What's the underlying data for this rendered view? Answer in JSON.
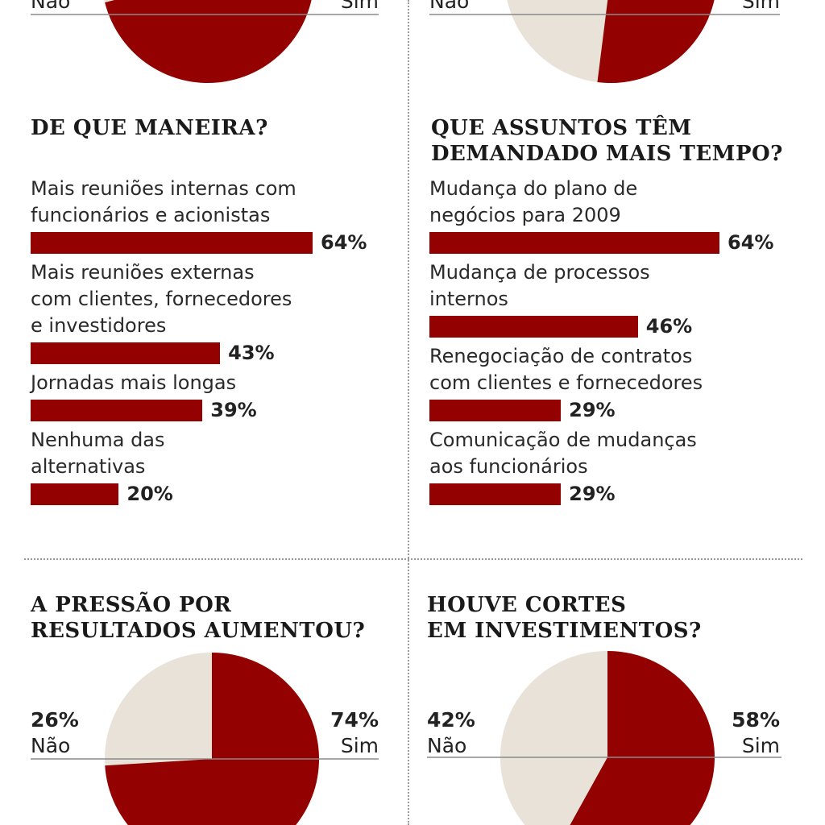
{
  "colors": {
    "accent": "#940101",
    "beige": "#e8e2d8",
    "baseline": "#8a8a8a"
  },
  "chart_data": [
    {
      "type": "pie",
      "title": "",
      "slices": [
        {
          "label": "Não",
          "value": 29,
          "display": ""
        },
        {
          "label": "Sim",
          "value": 71,
          "display": ""
        }
      ]
    },
    {
      "type": "pie",
      "title": "",
      "slices": [
        {
          "label": "Não",
          "value": 48,
          "display": ""
        },
        {
          "label": "Sim",
          "value": 52,
          "display": ""
        }
      ]
    },
    {
      "type": "bar",
      "title": "DE QUE MANEIRA?",
      "categories": [
        "Mais reuniões internas com\nfuncionários e acionistas",
        "Mais reuniões externas\ncom clientes, fornecedores\ne investidores",
        "Jornadas mais longas",
        "Nenhuma das\nalternativas"
      ],
      "values": [
        64,
        43,
        39,
        20
      ],
      "value_labels": [
        "64%",
        "43%",
        "39%",
        "20%"
      ],
      "unit": "%"
    },
    {
      "type": "bar",
      "title": "QUE ASSUNTOS TÊM\nDEMANDADO MAIS TEMPO?",
      "categories": [
        "Mudança do plano de\nnegócios para 2009",
        "Mudança de processos\ninternos",
        "Renegociação de contratos\ncom clientes e fornecedores",
        "Comunicação de mudanças\naos funcionários"
      ],
      "values": [
        64,
        46,
        29,
        29
      ],
      "value_labels": [
        "64%",
        "46%",
        "29%",
        "29%"
      ],
      "unit": "%"
    },
    {
      "type": "pie",
      "title": "A PRESSÃO POR\nRESULTADOS AUMENTOU?",
      "slices": [
        {
          "label": "Não",
          "value": 26,
          "display": "26%"
        },
        {
          "label": "Sim",
          "value": 74,
          "display": "74%"
        }
      ]
    },
    {
      "type": "pie",
      "title": "HOUVE CORTES\nEM INVESTIMENTOS?",
      "slices": [
        {
          "label": "Não",
          "value": 42,
          "display": "42%"
        },
        {
          "label": "Sim",
          "value": 58,
          "display": "58%"
        }
      ]
    }
  ]
}
